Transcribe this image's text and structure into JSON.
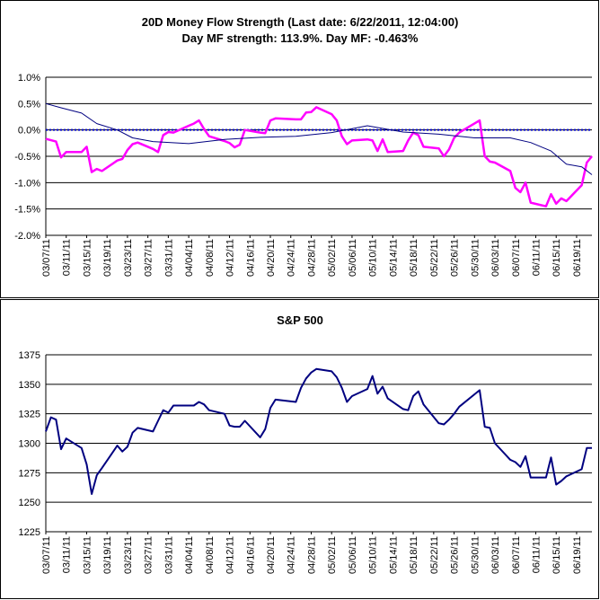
{
  "colors": {
    "background": "#ffffff",
    "frame": "#000000",
    "mf_line": "#ff00ff",
    "strength_line": "#000080",
    "zero_line": "#0000cc",
    "sp_line": "#000080"
  },
  "chart_data": [
    {
      "type": "line",
      "title": "20D Money Flow Strength (Last date: 6/22/2011, 12:04:00)",
      "subtitle": "Day MF strength: 113.9%. Day MF: -0.463%",
      "xlabel": "",
      "ylabel": "",
      "y_format": "percent",
      "ylim": [
        -2.0,
        1.0
      ],
      "y_ticks": [
        1.0,
        0.5,
        0.0,
        -0.5,
        -1.0,
        -1.5,
        -2.0
      ],
      "y_tick_labels": [
        "1.0%",
        "0.5%",
        "0.0%",
        "-0.5%",
        "-1.0%",
        "-1.5%",
        "-2.0%"
      ],
      "gridlines": "horizontal",
      "legend": "none",
      "x_tick_labels": [
        "03/07/11",
        "03/11/11",
        "03/15/11",
        "03/19/11",
        "03/23/11",
        "03/27/11",
        "03/31/11",
        "04/04/11",
        "04/08/11",
        "04/12/11",
        "04/16/11",
        "04/20/11",
        "04/24/11",
        "04/28/11",
        "05/02/11",
        "05/06/11",
        "05/10/11",
        "05/14/11",
        "05/18/11",
        "05/22/11",
        "05/26/11",
        "05/30/11",
        "06/03/11",
        "06/07/11",
        "06/11/11",
        "06/15/11",
        "06/19/11"
      ],
      "x_range": [
        "03/07/11",
        "06/22/11"
      ],
      "series": [
        {
          "style": "thick magenta line",
          "points": [
            [
              "03/07/11",
              -0.17
            ],
            [
              "03/09/11",
              -0.22
            ],
            [
              "03/10/11",
              -0.52
            ],
            [
              "03/11/11",
              -0.42
            ],
            [
              "03/14/11",
              -0.42
            ],
            [
              "03/15/11",
              -0.32
            ],
            [
              "03/16/11",
              -0.8
            ],
            [
              "03/17/11",
              -0.74
            ],
            [
              "03/18/11",
              -0.78
            ],
            [
              "03/21/11",
              -0.58
            ],
            [
              "03/22/11",
              -0.55
            ],
            [
              "03/23/11",
              -0.38
            ],
            [
              "03/24/11",
              -0.27
            ],
            [
              "03/25/11",
              -0.24
            ],
            [
              "03/28/11",
              -0.36
            ],
            [
              "03/29/11",
              -0.42
            ],
            [
              "03/30/11",
              -0.1
            ],
            [
              "03/31/11",
              -0.04
            ],
            [
              "04/01/11",
              -0.05
            ],
            [
              "04/04/11",
              0.08
            ],
            [
              "04/05/11",
              0.12
            ],
            [
              "04/06/11",
              0.18
            ],
            [
              "04/07/11",
              0.02
            ],
            [
              "04/08/11",
              -0.12
            ],
            [
              "04/11/11",
              -0.21
            ],
            [
              "04/12/11",
              -0.25
            ],
            [
              "04/13/11",
              -0.33
            ],
            [
              "04/14/11",
              -0.28
            ],
            [
              "04/15/11",
              0.0
            ],
            [
              "04/18/11",
              -0.05
            ],
            [
              "04/19/11",
              -0.06
            ],
            [
              "04/20/11",
              0.18
            ],
            [
              "04/21/11",
              0.22
            ],
            [
              "04/25/11",
              0.2
            ],
            [
              "04/26/11",
              0.2
            ],
            [
              "04/27/11",
              0.33
            ],
            [
              "04/28/11",
              0.34
            ],
            [
              "04/29/11",
              0.43
            ],
            [
              "05/02/11",
              0.3
            ],
            [
              "05/03/11",
              0.18
            ],
            [
              "05/04/11",
              -0.12
            ],
            [
              "05/05/11",
              -0.27
            ],
            [
              "05/06/11",
              -0.2
            ],
            [
              "05/09/11",
              -0.18
            ],
            [
              "05/10/11",
              -0.2
            ],
            [
              "05/11/11",
              -0.4
            ],
            [
              "05/12/11",
              -0.18
            ],
            [
              "05/13/11",
              -0.42
            ],
            [
              "05/16/11",
              -0.4
            ],
            [
              "05/17/11",
              -0.2
            ],
            [
              "05/18/11",
              -0.05
            ],
            [
              "05/19/11",
              -0.1
            ],
            [
              "05/20/11",
              -0.32
            ],
            [
              "05/23/11",
              -0.35
            ],
            [
              "05/24/11",
              -0.5
            ],
            [
              "05/25/11",
              -0.37
            ],
            [
              "05/26/11",
              -0.15
            ],
            [
              "05/27/11",
              -0.05
            ],
            [
              "05/31/11",
              0.18
            ],
            [
              "06/01/11",
              -0.5
            ],
            [
              "06/02/11",
              -0.6
            ],
            [
              "06/03/11",
              -0.62
            ],
            [
              "06/06/11",
              -0.78
            ],
            [
              "06/07/11",
              -1.1
            ],
            [
              "06/08/11",
              -1.18
            ],
            [
              "06/09/11",
              -1.0
            ],
            [
              "06/10/11",
              -1.38
            ],
            [
              "06/13/11",
              -1.45
            ],
            [
              "06/14/11",
              -1.22
            ],
            [
              "06/15/11",
              -1.4
            ],
            [
              "06/16/11",
              -1.3
            ],
            [
              "06/17/11",
              -1.35
            ],
            [
              "06/20/11",
              -1.05
            ],
            [
              "06/21/11",
              -0.62
            ],
            [
              "06/22/11",
              -0.5
            ]
          ]
        },
        {
          "style": "thin dark line",
          "points": [
            [
              "03/07/11",
              0.5
            ],
            [
              "03/10/11",
              0.42
            ],
            [
              "03/14/11",
              0.32
            ],
            [
              "03/17/11",
              0.12
            ],
            [
              "03/21/11",
              0.0
            ],
            [
              "03/24/11",
              -0.15
            ],
            [
              "03/28/11",
              -0.22
            ],
            [
              "04/04/11",
              -0.26
            ],
            [
              "04/11/11",
              -0.18
            ],
            [
              "04/18/11",
              -0.14
            ],
            [
              "04/25/11",
              -0.12
            ],
            [
              "05/02/11",
              -0.05
            ],
            [
              "05/09/11",
              0.08
            ],
            [
              "05/16/11",
              -0.04
            ],
            [
              "05/23/11",
              -0.08
            ],
            [
              "05/30/11",
              -0.15
            ],
            [
              "06/06/11",
              -0.15
            ],
            [
              "06/10/11",
              -0.24
            ],
            [
              "06/14/11",
              -0.4
            ],
            [
              "06/17/11",
              -0.65
            ],
            [
              "06/20/11",
              -0.7
            ],
            [
              "06/22/11",
              -0.85
            ]
          ]
        }
      ],
      "reference_lines": [
        {
          "y": 0.0,
          "style": "dotted blue"
        }
      ]
    },
    {
      "type": "line",
      "title": "S&P 500",
      "xlabel": "",
      "ylabel": "",
      "ylim": [
        1225,
        1375
      ],
      "y_ticks": [
        1375,
        1350,
        1325,
        1300,
        1275,
        1250,
        1225
      ],
      "y_tick_labels": [
        "1375",
        "1350",
        "1325",
        "1300",
        "1275",
        "1250",
        "1225"
      ],
      "gridlines": "horizontal",
      "legend": "none",
      "x_tick_labels": [
        "03/07/11",
        "03/11/11",
        "03/15/11",
        "03/19/11",
        "03/23/11",
        "03/27/11",
        "03/31/11",
        "04/04/11",
        "04/08/11",
        "04/12/11",
        "04/16/11",
        "04/20/11",
        "04/24/11",
        "04/28/11",
        "05/02/11",
        "05/06/11",
        "05/10/11",
        "05/14/11",
        "05/18/11",
        "05/22/11",
        "05/26/11",
        "05/30/11",
        "06/03/11",
        "06/07/11",
        "06/11/11",
        "06/15/11",
        "06/19/11"
      ],
      "x_range": [
        "03/07/11",
        "06/22/11"
      ],
      "series": [
        {
          "style": "dark blue line",
          "points": [
            [
              "03/07/11",
              1310
            ],
            [
              "03/08/11",
              1322
            ],
            [
              "03/09/11",
              1320
            ],
            [
              "03/10/11",
              1295
            ],
            [
              "03/11/11",
              1304
            ],
            [
              "03/14/11",
              1296
            ],
            [
              "03/15/11",
              1282
            ],
            [
              "03/16/11",
              1257
            ],
            [
              "03/17/11",
              1273
            ],
            [
              "03/18/11",
              1279
            ],
            [
              "03/21/11",
              1298
            ],
            [
              "03/22/11",
              1293
            ],
            [
              "03/23/11",
              1297
            ],
            [
              "03/24/11",
              1309
            ],
            [
              "03/25/11",
              1313
            ],
            [
              "03/28/11",
              1310
            ],
            [
              "03/29/11",
              1319
            ],
            [
              "03/30/11",
              1328
            ],
            [
              "03/31/11",
              1326
            ],
            [
              "04/01/11",
              1332
            ],
            [
              "04/04/11",
              1332
            ],
            [
              "04/05/11",
              1332
            ],
            [
              "04/06/11",
              1335
            ],
            [
              "04/07/11",
              1333
            ],
            [
              "04/08/11",
              1328
            ],
            [
              "04/11/11",
              1325
            ],
            [
              "04/12/11",
              1315
            ],
            [
              "04/13/11",
              1314
            ],
            [
              "04/14/11",
              1314
            ],
            [
              "04/15/11",
              1319
            ],
            [
              "04/18/11",
              1305
            ],
            [
              "04/19/11",
              1312
            ],
            [
              "04/20/11",
              1330
            ],
            [
              "04/21/11",
              1337
            ],
            [
              "04/25/11",
              1335
            ],
            [
              "04/26/11",
              1347
            ],
            [
              "04/27/11",
              1355
            ],
            [
              "04/28/11",
              1360
            ],
            [
              "04/29/11",
              1363
            ],
            [
              "05/02/11",
              1361
            ],
            [
              "05/03/11",
              1356
            ],
            [
              "05/04/11",
              1347
            ],
            [
              "05/05/11",
              1335
            ],
            [
              "05/06/11",
              1340
            ],
            [
              "05/09/11",
              1346
            ],
            [
              "05/10/11",
              1357
            ],
            [
              "05/11/11",
              1342
            ],
            [
              "05/12/11",
              1348
            ],
            [
              "05/13/11",
              1338
            ],
            [
              "05/16/11",
              1329
            ],
            [
              "05/17/11",
              1328
            ],
            [
              "05/18/11",
              1340
            ],
            [
              "05/19/11",
              1344
            ],
            [
              "05/20/11",
              1333
            ],
            [
              "05/23/11",
              1317
            ],
            [
              "05/24/11",
              1316
            ],
            [
              "05/25/11",
              1320
            ],
            [
              "05/26/11",
              1325
            ],
            [
              "05/27/11",
              1331
            ],
            [
              "05/31/11",
              1345
            ],
            [
              "06/01/11",
              1314
            ],
            [
              "06/02/11",
              1313
            ],
            [
              "06/03/11",
              1300
            ],
            [
              "06/06/11",
              1286
            ],
            [
              "06/07/11",
              1284
            ],
            [
              "06/08/11",
              1280
            ],
            [
              "06/09/11",
              1289
            ],
            [
              "06/10/11",
              1271
            ],
            [
              "06/13/11",
              1271
            ],
            [
              "06/14/11",
              1288
            ],
            [
              "06/15/11",
              1265
            ],
            [
              "06/16/11",
              1268
            ],
            [
              "06/17/11",
              1272
            ],
            [
              "06/20/11",
              1278
            ],
            [
              "06/21/11",
              1296
            ],
            [
              "06/22/11",
              1296
            ]
          ]
        }
      ]
    }
  ]
}
